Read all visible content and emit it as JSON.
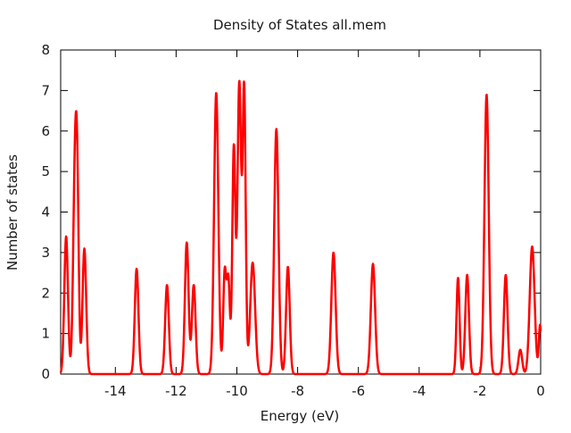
{
  "chart_data": {
    "type": "line",
    "title": "Density of States all.mem",
    "xlabel": "Energy (eV)",
    "ylabel": "Number of states",
    "xlim": [
      -15.8,
      0
    ],
    "ylim": [
      0,
      8
    ],
    "x_ticks": [
      -14,
      -12,
      -10,
      -8,
      -6,
      -4,
      -2,
      0
    ],
    "x_tick_labels": [
      "-14",
      "-12",
      "-10",
      "-8",
      "-6",
      "-4",
      "-2",
      "0"
    ],
    "y_ticks": [
      0,
      1,
      2,
      3,
      4,
      5,
      6,
      7,
      8
    ],
    "y_tick_labels": [
      "0",
      "1",
      "2",
      "3",
      "4",
      "5",
      "6",
      "7",
      "8"
    ],
    "grid": false,
    "legend": "none",
    "series": [
      {
        "color": "#ff0000",
        "peaks": [
          {
            "center": -15.62,
            "height": 3.4,
            "width": 0.06
          },
          {
            "center": -15.33,
            "height": 4.85,
            "width": 0.06
          },
          {
            "center": -15.25,
            "height": 3.6,
            "width": 0.05
          },
          {
            "center": -15.02,
            "height": 3.1,
            "width": 0.06
          },
          {
            "center": -13.3,
            "height": 2.6,
            "width": 0.06
          },
          {
            "center": -12.3,
            "height": 2.2,
            "width": 0.06
          },
          {
            "center": -11.65,
            "height": 3.25,
            "width": 0.06
          },
          {
            "center": -11.42,
            "height": 2.2,
            "width": 0.06
          },
          {
            "center": -10.68,
            "height": 6.95,
            "width": 0.07
          },
          {
            "center": -10.4,
            "height": 2.5,
            "width": 0.05
          },
          {
            "center": -10.28,
            "height": 2.3,
            "width": 0.05
          },
          {
            "center": -10.1,
            "height": 5.6,
            "width": 0.05
          },
          {
            "center": -9.92,
            "height": 7.2,
            "width": 0.06
          },
          {
            "center": -9.76,
            "height": 7.0,
            "width": 0.05
          },
          {
            "center": -9.48,
            "height": 2.75,
            "width": 0.08
          },
          {
            "center": -8.7,
            "height": 6.05,
            "width": 0.07
          },
          {
            "center": -8.32,
            "height": 2.65,
            "width": 0.06
          },
          {
            "center": -6.82,
            "height": 3.0,
            "width": 0.07
          },
          {
            "center": -5.52,
            "height": 2.72,
            "width": 0.07
          },
          {
            "center": -2.72,
            "height": 2.38,
            "width": 0.05
          },
          {
            "center": -2.42,
            "height": 2.45,
            "width": 0.06
          },
          {
            "center": -1.78,
            "height": 6.9,
            "width": 0.07
          },
          {
            "center": -1.15,
            "height": 2.45,
            "width": 0.06
          },
          {
            "center": -0.67,
            "height": 0.6,
            "width": 0.06
          },
          {
            "center": -0.28,
            "height": 3.15,
            "width": 0.08
          },
          {
            "center": -0.02,
            "height": 1.2,
            "width": 0.04
          }
        ]
      }
    ]
  }
}
